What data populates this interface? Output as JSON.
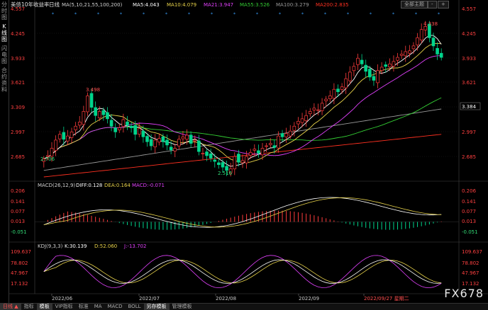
{
  "side_tabs": [
    "分时图",
    "K线图",
    "闪电图",
    "合约资料"
  ],
  "header": {
    "title": "美债10年收益率",
    "period": "日线",
    "ma_label": "MA(5,10,21,55,100,200)",
    "ma5": "MA5:4.043",
    "ma10": "MA10:4.079",
    "ma21": "MA21:3.947",
    "ma55": "MA55:3.526",
    "ma100": "MA100:3.279",
    "ma200": "MA200:2.835"
  },
  "buttons": {
    "main_chart": "全部主题",
    "minus": "-",
    "plus": "+"
  },
  "price_axis": {
    "labels": [
      "4.557",
      "4.245",
      "3.933",
      "3.621",
      "3.309",
      "2.997",
      "2.685"
    ],
    "right_labels": [
      "4.557",
      "4.245",
      "3.933",
      "3.621",
      "3.384",
      "2.997",
      "2.685"
    ],
    "current": "3.384"
  },
  "annotations": {
    "high": "4.338",
    "peak1": "3.498",
    "low1": "2.706",
    "low2": "2.516"
  },
  "macd": {
    "label": "MACD(26,12,9)",
    "diff": "DIFF:0.128",
    "dea": "DEA:0.164",
    "macd": "MACD:-0.071",
    "axis": [
      "0.206",
      "0.141",
      "0.077",
      "0.013",
      "-0.051"
    ]
  },
  "kdj": {
    "label": "KDJ(9,3,3)",
    "k": "K:30.139",
    "d": "D:52.060",
    "j": "J:-13.702",
    "axis": [
      "109.637",
      "78.802",
      "47.967",
      "17.132"
    ]
  },
  "x_axis": [
    "2022/06",
    "2022/07",
    "2022/08",
    "2022/09"
  ],
  "cursor_date": "2022/09/27 星期二",
  "bottom_tabs": [
    "日线 ▲",
    "指标",
    "模板",
    "VIP指标",
    "标准",
    "MA",
    "MACD",
    "BOLL",
    "另存模板",
    "管理模板"
  ],
  "brand": "FX678",
  "chart_data": {
    "type": "candlestick",
    "x": [
      "2022/06",
      "2022/07",
      "2022/08",
      "2022/09"
    ],
    "price_ylim": [
      2.5,
      4.557
    ],
    "close_path": [
      2.72,
      2.76,
      2.85,
      2.95,
      3.02,
      2.96,
      3.0,
      3.05,
      3.12,
      3.17,
      3.3,
      3.49,
      3.35,
      3.25,
      3.3,
      3.26,
      3.21,
      3.12,
      3.05,
      3.1,
      3.2,
      3.13,
      3.1,
      3.02,
      3.09,
      2.99,
      2.93,
      2.88,
      2.95,
      2.97,
      2.93,
      2.89,
      2.83,
      2.85,
      2.96,
      2.99,
      3.01,
      2.91,
      2.95,
      2.81,
      2.79,
      2.76,
      2.73,
      2.69,
      2.65,
      2.62,
      2.58,
      2.6,
      2.75,
      2.68,
      2.7,
      2.75,
      2.8,
      2.84,
      2.79,
      2.85,
      2.88,
      2.91,
      2.86,
      3.0,
      2.99,
      3.03,
      3.06,
      3.12,
      3.18,
      3.21,
      3.25,
      3.3,
      3.34,
      3.32,
      3.4,
      3.45,
      3.49,
      3.57,
      3.54,
      3.6,
      3.7,
      3.78,
      3.85,
      3.95,
      3.88,
      3.79,
      3.72,
      3.68,
      3.8,
      3.84,
      3.85,
      3.88,
      3.91,
      3.96,
      4.0,
      4.03,
      4.04,
      4.1,
      4.2,
      4.3,
      4.338,
      4.2,
      4.1,
      4.0,
      3.96
    ],
    "ma_series": [
      "MA5",
      "MA10",
      "MA21",
      "MA55",
      "MA100",
      "MA200"
    ]
  },
  "colors": {
    "up": "#ff3c3c",
    "down": "#00d48c",
    "ma5": "#ffffff",
    "ma10": "#e8d34a",
    "ma21": "#e040fb",
    "ma55": "#33cc33",
    "ma100": "#999999",
    "ma200": "#ff3020"
  }
}
